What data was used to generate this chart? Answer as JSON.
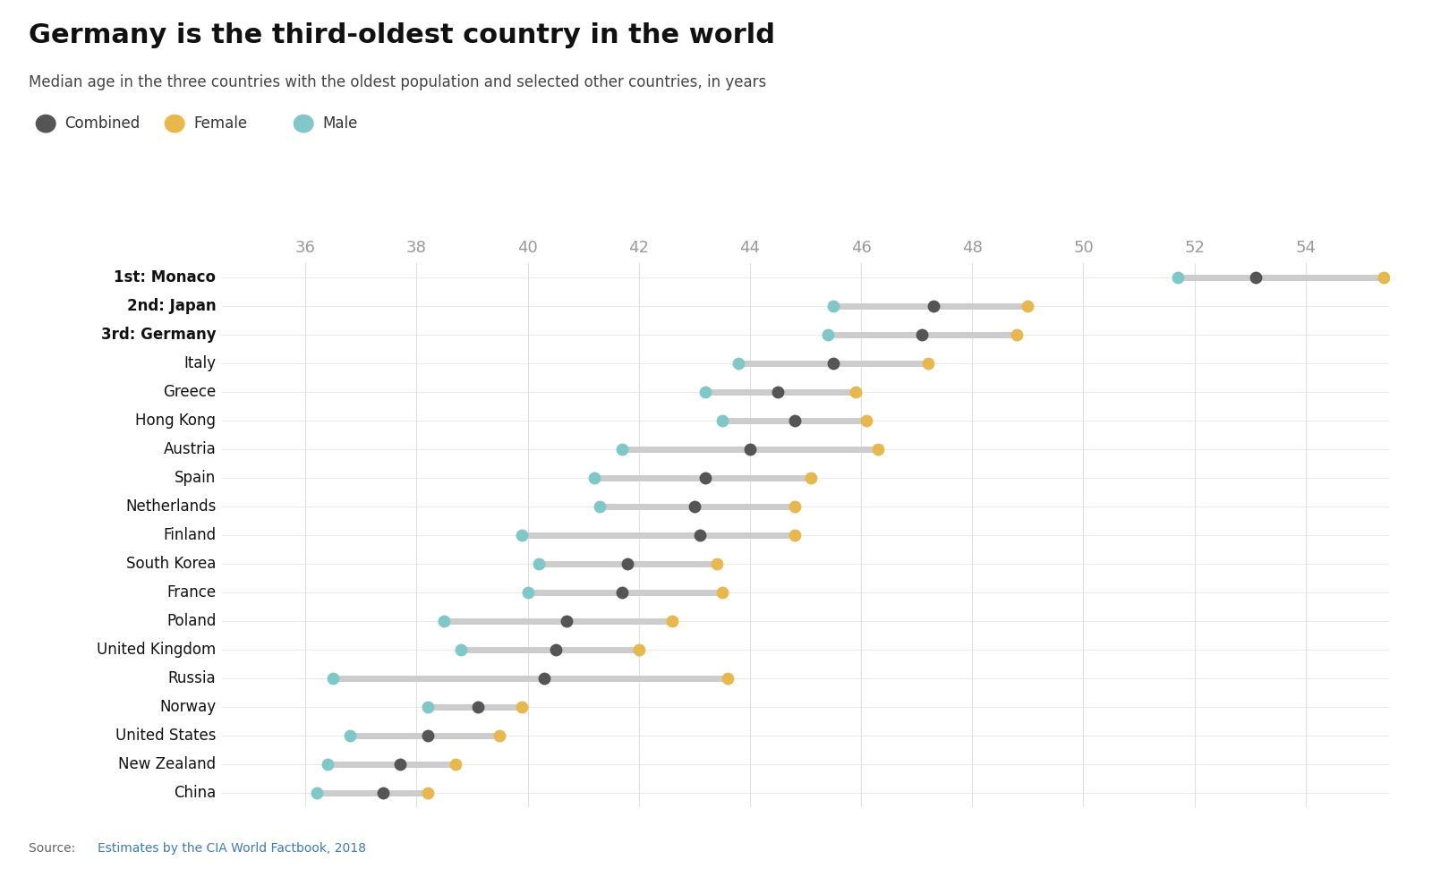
{
  "title": "Germany is the third-oldest country in the world",
  "subtitle": "Median age in the three countries with the oldest population and selected other countries, in years",
  "source_link_text": "Estimates by the CIA World Factbook, 2018",
  "colors": {
    "combined": "#555555",
    "female": "#E8B84B",
    "male": "#7EC8C8"
  },
  "xlim": [
    34.5,
    55.5
  ],
  "xticks": [
    36,
    38,
    40,
    42,
    44,
    46,
    48,
    50,
    52,
    54
  ],
  "countries": [
    "1st: Monaco",
    "2nd: Japan",
    "3rd: Germany",
    "Italy",
    "Greece",
    "Hong Kong",
    "Austria",
    "Spain",
    "Netherlands",
    "Finland",
    "South Korea",
    "France",
    "Poland",
    "United Kingdom",
    "Russia",
    "Norway",
    "United States",
    "New Zealand",
    "China"
  ],
  "bold_indices": [
    0,
    1,
    2
  ],
  "data": {
    "1st: Monaco": {
      "combined": 53.1,
      "female": 55.4,
      "male": 51.7
    },
    "2nd: Japan": {
      "combined": 47.3,
      "female": 49.0,
      "male": 45.5
    },
    "3rd: Germany": {
      "combined": 47.1,
      "female": 48.8,
      "male": 45.4
    },
    "Italy": {
      "combined": 45.5,
      "female": 47.2,
      "male": 43.8
    },
    "Greece": {
      "combined": 44.5,
      "female": 45.9,
      "male": 43.2
    },
    "Hong Kong": {
      "combined": 44.8,
      "female": 46.1,
      "male": 43.5
    },
    "Austria": {
      "combined": 44.0,
      "female": 46.3,
      "male": 41.7
    },
    "Spain": {
      "combined": 43.2,
      "female": 45.1,
      "male": 41.2
    },
    "Netherlands": {
      "combined": 43.0,
      "female": 44.8,
      "male": 41.3
    },
    "Finland": {
      "combined": 43.1,
      "female": 44.8,
      "male": 39.9
    },
    "South Korea": {
      "combined": 41.8,
      "female": 43.4,
      "male": 40.2
    },
    "France": {
      "combined": 41.7,
      "female": 43.5,
      "male": 40.0
    },
    "Poland": {
      "combined": 40.7,
      "female": 42.6,
      "male": 38.5
    },
    "United Kingdom": {
      "combined": 40.5,
      "female": 42.0,
      "male": 38.8
    },
    "Russia": {
      "combined": 40.3,
      "female": 43.6,
      "male": 36.5
    },
    "Norway": {
      "combined": 39.1,
      "female": 39.9,
      "male": 38.2
    },
    "United States": {
      "combined": 38.2,
      "female": 39.5,
      "male": 36.8
    },
    "New Zealand": {
      "combined": 37.7,
      "female": 38.7,
      "male": 36.4
    },
    "China": {
      "combined": 37.4,
      "female": 38.2,
      "male": 36.2
    }
  },
  "background_color": "#ffffff",
  "grid_color": "#e0e0e0",
  "dot_size": 100,
  "line_width": 5,
  "line_color": "#cccccc",
  "title_fontsize": 22,
  "subtitle_fontsize": 12,
  "label_fontsize": 12,
  "tick_fontsize": 13,
  "source_fontsize": 10
}
